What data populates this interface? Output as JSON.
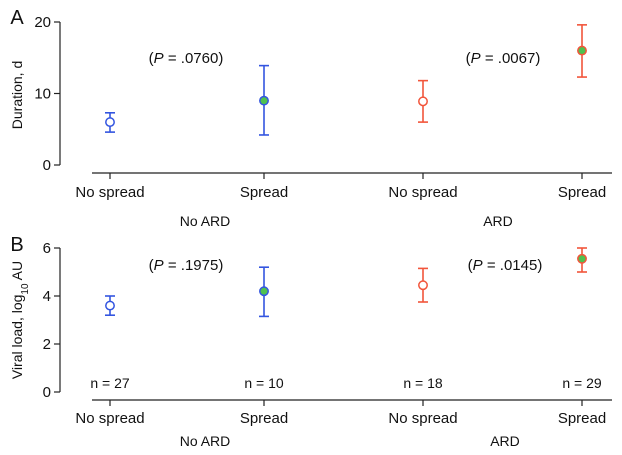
{
  "chart_data": [
    {
      "type": "scatter",
      "panel_label": "A",
      "ylabel": "Duration, d",
      "ylim": [
        0,
        20
      ],
      "yticks": [
        "0",
        "10",
        "20"
      ],
      "categories": [
        "No spread",
        "Spread",
        "No spread",
        "Spread"
      ],
      "groups": [
        {
          "label": "No ARD",
          "categories": [
            0,
            1
          ]
        },
        {
          "label": "ARD",
          "categories": [
            2,
            3
          ]
        }
      ],
      "points": [
        {
          "category": "No spread",
          "group": "No ARD",
          "mean": 6.0,
          "lower": 4.6,
          "upper": 7.3,
          "color": "#3355e0",
          "filled": false
        },
        {
          "category": "Spread",
          "group": "No ARD",
          "mean": 9.0,
          "lower": 4.2,
          "upper": 13.9,
          "color": "#3355e0",
          "filled": true
        },
        {
          "category": "No spread",
          "group": "ARD",
          "mean": 8.9,
          "lower": 6.0,
          "upper": 11.8,
          "color": "#f2553b",
          "filled": false
        },
        {
          "category": "Spread",
          "group": "ARD",
          "mean": 16.0,
          "lower": 12.3,
          "upper": 19.6,
          "color": "#f2553b",
          "filled": true
        }
      ],
      "annotations": [
        {
          "group": "No ARD",
          "text": "(P = .0760)"
        },
        {
          "group": "ARD",
          "text": "(P = .0067)"
        }
      ]
    },
    {
      "type": "scatter",
      "panel_label": "B",
      "ylabel": "Viral load, log10 AU",
      "ylabel_main": "Viral load, log",
      "ylabel_sub": "10",
      "ylabel_tail": " AU",
      "ylim": [
        0,
        6
      ],
      "yticks": [
        "0",
        "2",
        "4",
        "6"
      ],
      "categories": [
        "No spread",
        "Spread",
        "No spread",
        "Spread"
      ],
      "groups": [
        {
          "label": "No ARD",
          "categories": [
            0,
            1
          ]
        },
        {
          "label": "ARD",
          "categories": [
            2,
            3
          ]
        }
      ],
      "points": [
        {
          "category": "No spread",
          "group": "No ARD",
          "mean": 3.6,
          "lower": 3.2,
          "upper": 4.0,
          "color": "#3355e0",
          "filled": false,
          "n": "n = 27"
        },
        {
          "category": "Spread",
          "group": "No ARD",
          "mean": 4.2,
          "lower": 3.15,
          "upper": 5.2,
          "color": "#3355e0",
          "filled": true,
          "n": "n = 10"
        },
        {
          "category": "No spread",
          "group": "ARD",
          "mean": 4.45,
          "lower": 3.75,
          "upper": 5.15,
          "color": "#f2553b",
          "filled": false,
          "n": "n = 18"
        },
        {
          "category": "Spread",
          "group": "ARD",
          "mean": 5.55,
          "lower": 5.0,
          "upper": 6.0,
          "color": "#f2553b",
          "filled": true,
          "n": "n = 29"
        }
      ],
      "annotations": [
        {
          "group": "No ARD",
          "text": "(P = .1975)"
        },
        {
          "group": "ARD",
          "text": "(P = .0145)"
        }
      ]
    }
  ],
  "colors": {
    "no_ard": "#3355e0",
    "ard": "#f2553b",
    "spread_fill": "#4fc24f"
  }
}
